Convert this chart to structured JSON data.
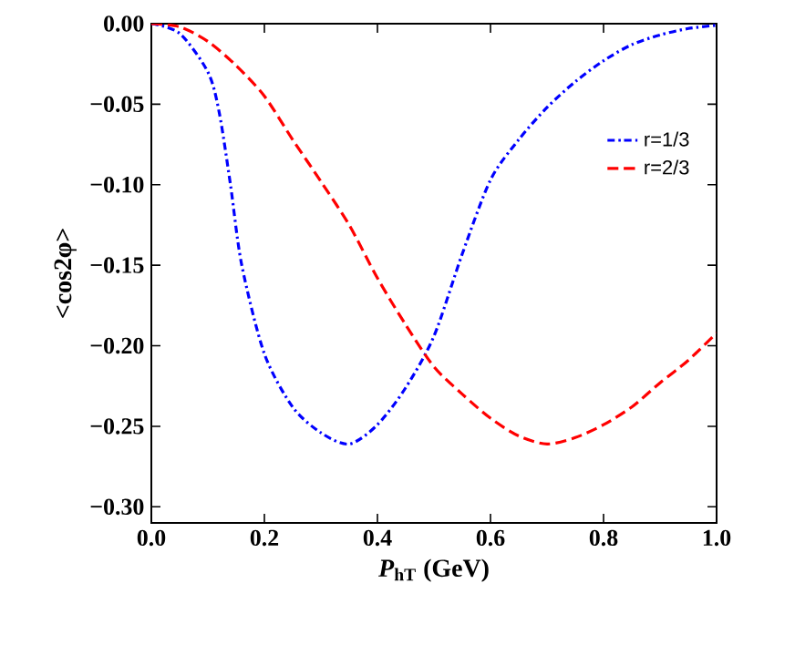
{
  "chart_data": {
    "type": "line",
    "xlabel": "*P*$_{hT}$ (GeV)",
    "ylabel": "<cos2φ>",
    "xlim": [
      0,
      1
    ],
    "ylim": [
      -0.31,
      0
    ],
    "xticks": [
      {
        "value": 0,
        "label": "0.0"
      },
      {
        "value": 0.2,
        "label": "0.2"
      },
      {
        "value": 0.4,
        "label": "0.4"
      },
      {
        "value": 0.6,
        "label": "0.6"
      },
      {
        "value": 0.8,
        "label": "0.8"
      },
      {
        "value": 1,
        "label": "1.0"
      }
    ],
    "yticks": [
      {
        "value": 0,
        "label": "0.00"
      },
      {
        "value": -0.05,
        "label": "−0.05"
      },
      {
        "value": -0.1,
        "label": "−0.10"
      },
      {
        "value": -0.15,
        "label": "−0.15"
      },
      {
        "value": -0.2,
        "label": "−0.20"
      },
      {
        "value": -0.25,
        "label": "−0.25"
      },
      {
        "value": -0.3,
        "label": "−0.30"
      }
    ],
    "x": [
      0,
      0.05,
      0.1,
      0.12,
      0.14,
      0.16,
      0.2,
      0.25,
      0.3,
      0.35,
      0.4,
      0.45,
      0.5,
      0.55,
      0.6,
      0.65,
      0.7,
      0.75,
      0.8,
      0.85,
      0.9,
      0.95,
      1.0
    ],
    "legend": "top right",
    "grid": false,
    "series": [
      {
        "name": "r=1/3",
        "color": "#0000ff",
        "line_style": "dashdot",
        "values": [
          0,
          -0.006,
          -0.03,
          -0.055,
          -0.1,
          -0.15,
          -0.205,
          -0.238,
          -0.254,
          -0.261,
          -0.249,
          -0.226,
          -0.194,
          -0.143,
          -0.097,
          -0.072,
          -0.052,
          -0.036,
          -0.023,
          -0.013,
          -0.007,
          -0.003,
          -0.001
        ]
      },
      {
        "name": "r=2/3",
        "color": "#ff0000",
        "line_style": "dashed",
        "x": [
          0,
          0.05,
          0.1,
          0.15,
          0.2,
          0.25,
          0.3,
          0.35,
          0.4,
          0.45,
          0.5,
          0.55,
          0.6,
          0.65,
          0.7,
          0.75,
          0.8,
          0.85,
          0.9,
          0.95,
          1.0
        ],
        "values": [
          0,
          -0.002,
          -0.011,
          -0.026,
          -0.045,
          -0.072,
          -0.098,
          -0.125,
          -0.158,
          -0.187,
          -0.213,
          -0.23,
          -0.245,
          -0.256,
          -0.261,
          -0.257,
          -0.249,
          -0.238,
          -0.223,
          -0.209,
          -0.192
        ]
      }
    ]
  }
}
